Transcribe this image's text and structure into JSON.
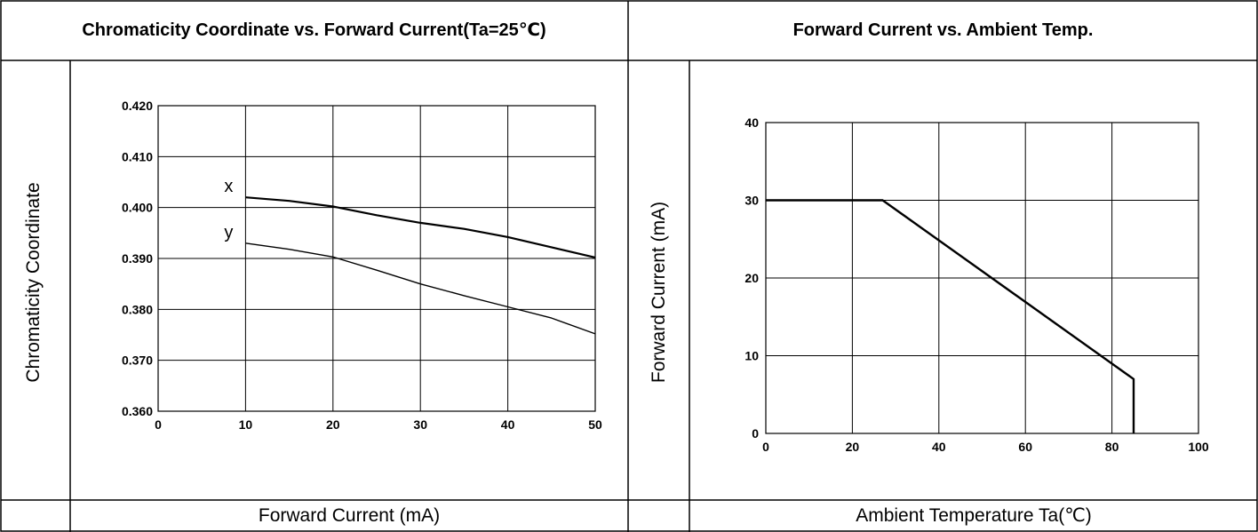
{
  "chart_data": [
    {
      "type": "line",
      "title": "Chromaticity Coordinate vs. Forward Current(Ta=25℃)",
      "xlabel": "Forward Current (mA)",
      "ylabel": "Chromaticity Coordinate",
      "xlim": [
        0,
        50
      ],
      "ylim": [
        0.36,
        0.42
      ],
      "xticks": [
        0,
        10,
        20,
        30,
        40,
        50
      ],
      "xtick_labels": [
        "0",
        "10",
        "20",
        "30",
        "40",
        "50"
      ],
      "yticks": [
        0.36,
        0.37,
        0.38,
        0.39,
        0.4,
        0.41,
        0.42
      ],
      "ytick_labels": [
        "0.360",
        "0.370",
        "0.380",
        "0.390",
        "0.400",
        "0.410",
        "0.420"
      ],
      "grid": true,
      "series": [
        {
          "name": "x",
          "x": [
            10,
            15,
            20,
            25,
            30,
            35,
            40,
            45,
            50
          ],
          "y": [
            0.402,
            0.4013,
            0.4002,
            0.3985,
            0.397,
            0.3958,
            0.3942,
            0.3922,
            0.3902
          ]
        },
        {
          "name": "y",
          "x": [
            10,
            15,
            20,
            25,
            30,
            35,
            40,
            45,
            50
          ],
          "y": [
            0.393,
            0.3918,
            0.3903,
            0.3877,
            0.385,
            0.3827,
            0.3805,
            0.3783,
            0.3752
          ]
        }
      ]
    },
    {
      "type": "line",
      "title": "Forward Current vs. Ambient Temp.",
      "xlabel": "Ambient Temperature Ta(℃)",
      "ylabel": "Forward Current (mA)",
      "xlim": [
        0,
        100
      ],
      "ylim": [
        0,
        40
      ],
      "xticks": [
        0,
        20,
        40,
        60,
        80,
        100
      ],
      "xtick_labels": [
        "0",
        "20",
        "40",
        "60",
        "80",
        "100"
      ],
      "yticks": [
        0,
        10,
        20,
        30,
        40
      ],
      "ytick_labels": [
        "0",
        "10",
        "20",
        "30",
        "40"
      ],
      "grid": true,
      "series": [
        {
          "x": [
            0,
            27,
            85,
            85
          ],
          "y": [
            30,
            30,
            7,
            0
          ]
        }
      ]
    }
  ]
}
